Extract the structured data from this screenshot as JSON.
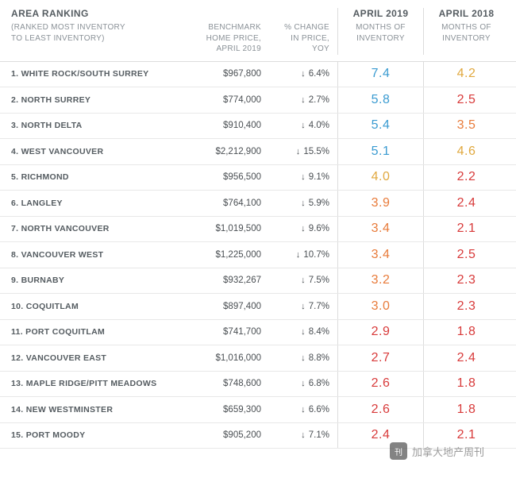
{
  "header": {
    "area_title": "AREA RANKING",
    "area_sub": "(RANKED MOST INVENTORY\nTO LEAST INVENTORY)",
    "price_sub": "BENCHMARK\nHOME PRICE,\nAPRIL 2019",
    "change_sub": "% CHANGE\nIN PRICE,\nYOY",
    "col2019_title": "APRIL 2019",
    "col2019_sub": "MONTHS OF\nINVENTORY",
    "col2018_title": "APRIL 2018",
    "col2018_sub": "MONTHS OF\nINVENTORY"
  },
  "colors": {
    "blue": "#3a9bd1",
    "gold": "#e0a83e",
    "orange": "#e87b3a",
    "red": "#d83a3a",
    "text": "#555c61"
  },
  "rows": [
    {
      "rank": "1.",
      "area": "WHITE ROCK/SOUTH SURREY",
      "price": "$967,800",
      "change": "6.4%",
      "inv2019": "7.4",
      "c2019": "#3a9bd1",
      "inv2018": "4.2",
      "c2018": "#e0a83e"
    },
    {
      "rank": "2.",
      "area": "NORTH SURREY",
      "price": "$774,000",
      "change": "2.7%",
      "inv2019": "5.8",
      "c2019": "#3a9bd1",
      "inv2018": "2.5",
      "c2018": "#d83a3a"
    },
    {
      "rank": "3.",
      "area": "NORTH DELTA",
      "price": "$910,400",
      "change": "4.0%",
      "inv2019": "5.4",
      "c2019": "#3a9bd1",
      "inv2018": "3.5",
      "c2018": "#e87b3a"
    },
    {
      "rank": "4.",
      "area": "WEST VANCOUVER",
      "price": "$2,212,900",
      "change": "15.5%",
      "inv2019": "5.1",
      "c2019": "#3a9bd1",
      "inv2018": "4.6",
      "c2018": "#e0a83e"
    },
    {
      "rank": "5.",
      "area": "RICHMOND",
      "price": "$956,500",
      "change": "9.1%",
      "inv2019": "4.0",
      "c2019": "#e0a83e",
      "inv2018": "2.2",
      "c2018": "#d83a3a"
    },
    {
      "rank": "6.",
      "area": "LANGLEY",
      "price": "$764,100",
      "change": "5.9%",
      "inv2019": "3.9",
      "c2019": "#e87b3a",
      "inv2018": "2.4",
      "c2018": "#d83a3a"
    },
    {
      "rank": "7.",
      "area": "NORTH VANCOUVER",
      "price": "$1,019,500",
      "change": "9.6%",
      "inv2019": "3.4",
      "c2019": "#e87b3a",
      "inv2018": "2.1",
      "c2018": "#d83a3a"
    },
    {
      "rank": "8.",
      "area": "VANCOUVER WEST",
      "price": "$1,225,000",
      "change": "10.7%",
      "inv2019": "3.4",
      "c2019": "#e87b3a",
      "inv2018": "2.5",
      "c2018": "#d83a3a"
    },
    {
      "rank": "9.",
      "area": "BURNABY",
      "price": "$932,267",
      "change": "7.5%",
      "inv2019": "3.2",
      "c2019": "#e87b3a",
      "inv2018": "2.3",
      "c2018": "#d83a3a"
    },
    {
      "rank": "10.",
      "area": "COQUITLAM",
      "price": "$897,400",
      "change": "7.7%",
      "inv2019": "3.0",
      "c2019": "#e87b3a",
      "inv2018": "2.3",
      "c2018": "#d83a3a"
    },
    {
      "rank": "11.",
      "area": "PORT COQUITLAM",
      "price": "$741,700",
      "change": "8.4%",
      "inv2019": "2.9",
      "c2019": "#d83a3a",
      "inv2018": "1.8",
      "c2018": "#d83a3a"
    },
    {
      "rank": "12.",
      "area": "VANCOUVER EAST",
      "price": "$1,016,000",
      "change": "8.8%",
      "inv2019": "2.7",
      "c2019": "#d83a3a",
      "inv2018": "2.4",
      "c2018": "#d83a3a"
    },
    {
      "rank": "13.",
      "area": "MAPLE RIDGE/PITT MEADOWS",
      "price": "$748,600",
      "change": "6.8%",
      "inv2019": "2.6",
      "c2019": "#d83a3a",
      "inv2018": "1.8",
      "c2018": "#d83a3a"
    },
    {
      "rank": "14.",
      "area": "NEW WESTMINSTER",
      "price": "$659,300",
      "change": "6.6%",
      "inv2019": "2.6",
      "c2019": "#d83a3a",
      "inv2018": "1.8",
      "c2018": "#d83a3a"
    },
    {
      "rank": "15.",
      "area": "PORT MOODY",
      "price": "$905,200",
      "change": "7.1%",
      "inv2019": "2.4",
      "c2019": "#d83a3a",
      "inv2018": "2.1",
      "c2018": "#d83a3a"
    }
  ],
  "watermark": {
    "text": "加拿大地产周刊"
  }
}
